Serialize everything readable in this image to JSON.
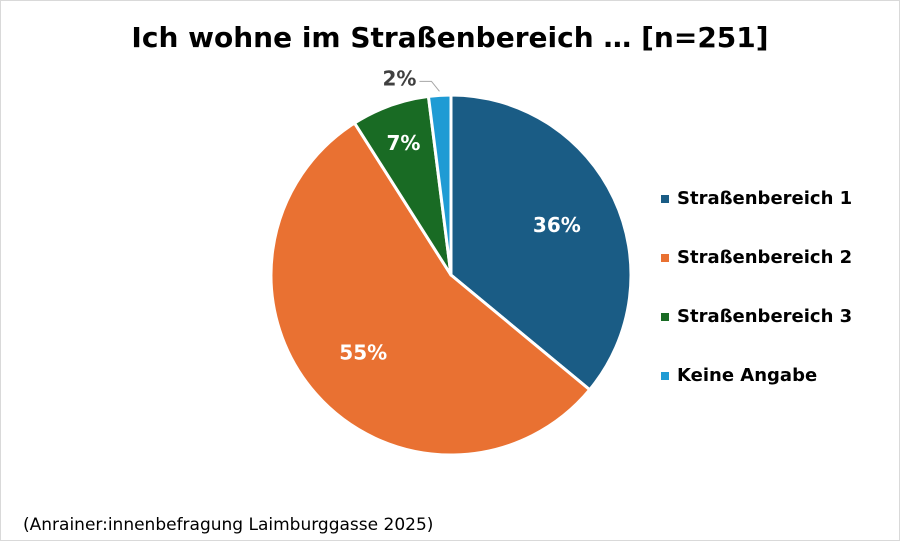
{
  "chart_data": {
    "type": "pie",
    "title": "Ich wohne im Straßenbereich … [n=251]",
    "categories": [
      "Straßenbereich 1",
      "Straßenbereich 2",
      "Straßenbereich 3",
      "Keine Angabe"
    ],
    "values": [
      36,
      55,
      7,
      2
    ],
    "value_labels": [
      "36%",
      "55%",
      "7%",
      "2%"
    ],
    "colors": [
      "#1a5c85",
      "#e97132",
      "#196b24",
      "#1f9bd4"
    ],
    "legend_position": "right",
    "start_angle": "12 o'clock, clockwise"
  },
  "source_note": "(Anrainer:innenbefragung Laimburggasse 2025)"
}
